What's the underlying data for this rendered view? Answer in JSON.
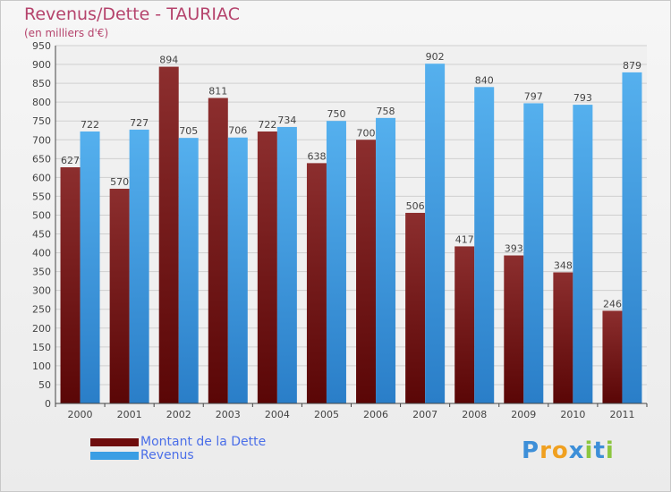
{
  "header": {
    "title": "Revenus/Dette - TAURIAC",
    "subtitle": "(en milliers d'€)"
  },
  "chart_data": {
    "type": "bar",
    "categories": [
      "2000",
      "2001",
      "2002",
      "2003",
      "2004",
      "2005",
      "2006",
      "2007",
      "2008",
      "2009",
      "2010",
      "2011"
    ],
    "series": [
      {
        "name": "Montant de la Dette",
        "color": "#7a1a1a",
        "values": [
          627,
          570,
          894,
          811,
          722,
          638,
          700,
          506,
          417,
          393,
          348,
          246
        ]
      },
      {
        "name": "Revenus",
        "color": "#3a9ee4",
        "values": [
          722,
          727,
          705,
          706,
          734,
          750,
          758,
          902,
          840,
          797,
          793,
          879
        ]
      }
    ],
    "yticks": [
      0,
      50,
      100,
      150,
      200,
      250,
      300,
      350,
      400,
      450,
      500,
      550,
      600,
      650,
      700,
      750,
      800,
      850,
      900,
      950
    ],
    "ylim": [
      0,
      950
    ],
    "grid": true,
    "legend": "bottom-left"
  },
  "brand": {
    "letters": [
      "P",
      "r",
      "o",
      "x",
      "i",
      "t",
      "i"
    ],
    "colors": [
      "#3d8fd8",
      "#f0a020",
      "#f0a020",
      "#3d8fd8",
      "#8cc63f",
      "#3d8fd8",
      "#8cc63f"
    ]
  }
}
